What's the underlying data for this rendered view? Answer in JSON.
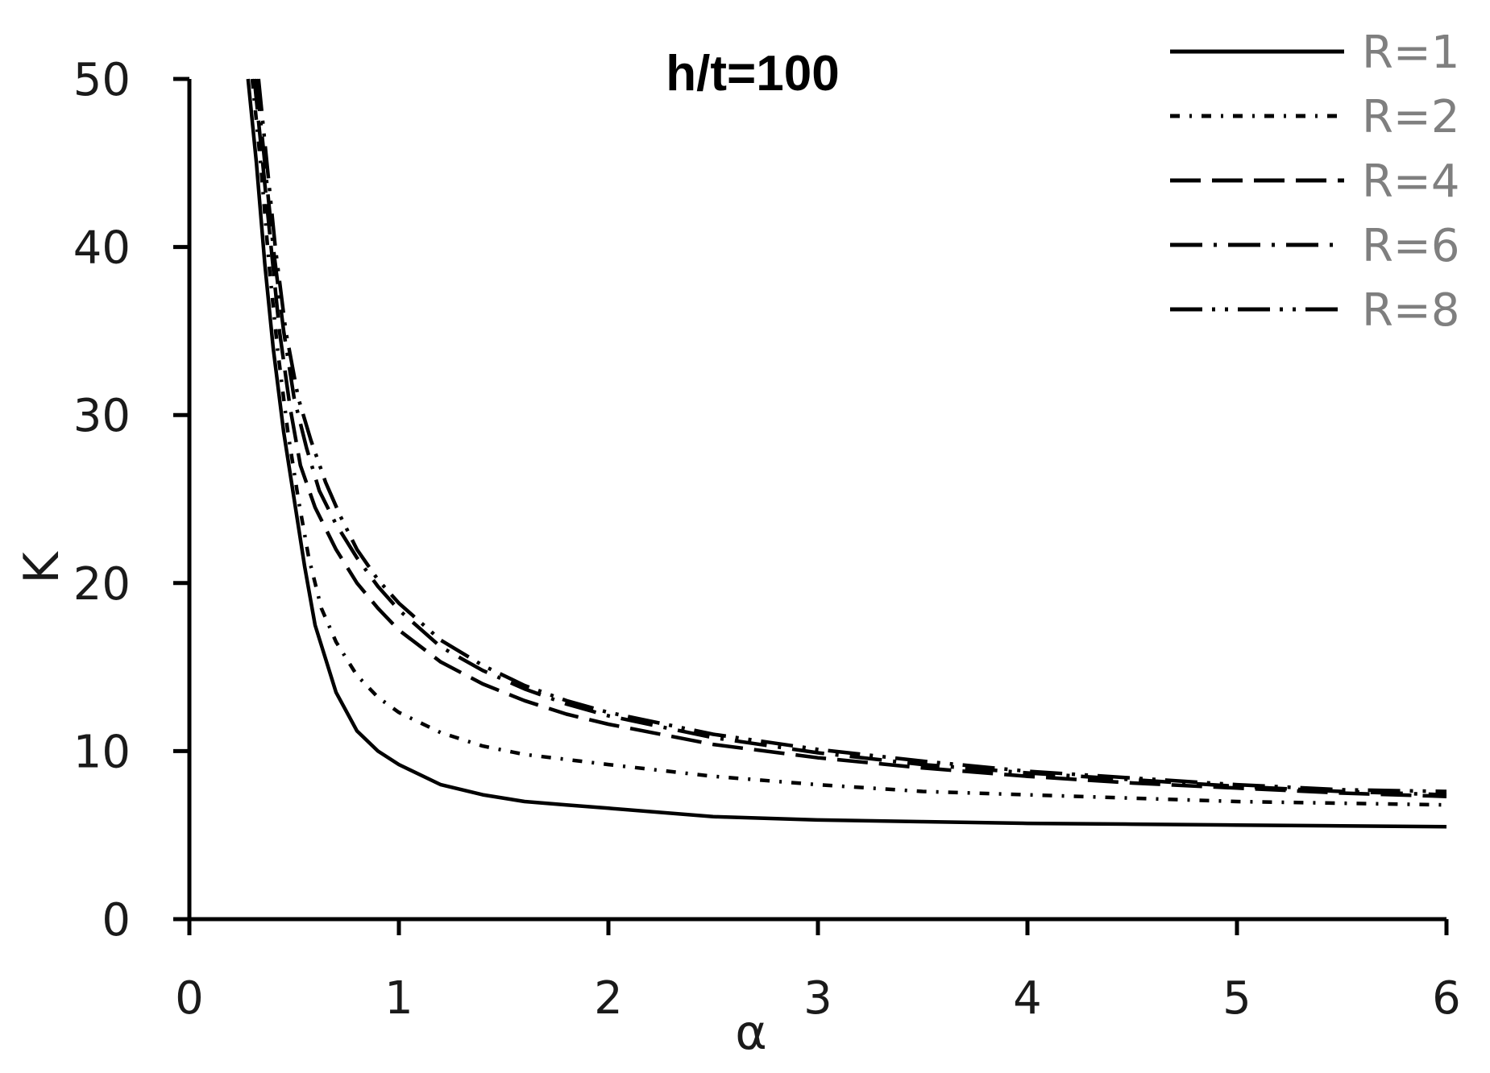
{
  "chart_data": {
    "type": "line",
    "title": "h/t=100",
    "xlabel": "α",
    "ylabel": "K",
    "xlim": [
      0,
      6
    ],
    "ylim": [
      0,
      50
    ],
    "x_ticks": [
      0,
      1,
      2,
      3,
      4,
      5,
      6
    ],
    "y_ticks": [
      0,
      10,
      20,
      30,
      40,
      50
    ],
    "grid": false,
    "legend_position": "top-right",
    "colors": {
      "line": "#000000",
      "legend_text": "#7f7f7f",
      "axis": "#000000"
    },
    "series": [
      {
        "name": "R=1",
        "style": "solid",
        "points": [
          [
            0.28,
            50
          ],
          [
            0.32,
            45
          ],
          [
            0.36,
            39
          ],
          [
            0.4,
            34
          ],
          [
            0.45,
            29
          ],
          [
            0.5,
            25
          ],
          [
            0.55,
            21
          ],
          [
            0.6,
            17.5
          ],
          [
            0.7,
            13.5
          ],
          [
            0.8,
            11.2
          ],
          [
            0.9,
            10
          ],
          [
            1.0,
            9.2
          ],
          [
            1.2,
            8.0
          ],
          [
            1.4,
            7.4
          ],
          [
            1.6,
            7.0
          ],
          [
            1.8,
            6.8
          ],
          [
            2.0,
            6.6
          ],
          [
            2.5,
            6.1
          ],
          [
            3.0,
            5.9
          ],
          [
            3.5,
            5.8
          ],
          [
            4.0,
            5.7
          ],
          [
            4.5,
            5.65
          ],
          [
            5.0,
            5.6
          ],
          [
            5.5,
            5.55
          ],
          [
            6.0,
            5.5
          ]
        ]
      },
      {
        "name": "R=2",
        "style": "dashdot",
        "points": [
          [
            0.3,
            50
          ],
          [
            0.34,
            45
          ],
          [
            0.38,
            39
          ],
          [
            0.42,
            34
          ],
          [
            0.47,
            29
          ],
          [
            0.52,
            25
          ],
          [
            0.57,
            21.5
          ],
          [
            0.63,
            18.5
          ],
          [
            0.7,
            16.5
          ],
          [
            0.8,
            14.5
          ],
          [
            0.9,
            13.2
          ],
          [
            1.0,
            12.3
          ],
          [
            1.2,
            11.1
          ],
          [
            1.4,
            10.3
          ],
          [
            1.6,
            9.8
          ],
          [
            1.8,
            9.5
          ],
          [
            2.0,
            9.2
          ],
          [
            2.5,
            8.5
          ],
          [
            3.0,
            8.0
          ],
          [
            3.5,
            7.6
          ],
          [
            4.0,
            7.4
          ],
          [
            4.5,
            7.2
          ],
          [
            5.0,
            7.0
          ],
          [
            5.5,
            6.9
          ],
          [
            6.0,
            6.8
          ]
        ]
      },
      {
        "name": "R=4",
        "style": "dashed",
        "points": [
          [
            0.31,
            50
          ],
          [
            0.35,
            45
          ],
          [
            0.39,
            40
          ],
          [
            0.43,
            35
          ],
          [
            0.48,
            30.5
          ],
          [
            0.53,
            27
          ],
          [
            0.6,
            24.5
          ],
          [
            0.7,
            22
          ],
          [
            0.8,
            20
          ],
          [
            0.9,
            18.5
          ],
          [
            1.0,
            17.2
          ],
          [
            1.2,
            15.3
          ],
          [
            1.4,
            14.0
          ],
          [
            1.6,
            13.0
          ],
          [
            1.8,
            12.2
          ],
          [
            2.0,
            11.6
          ],
          [
            2.5,
            10.4
          ],
          [
            3.0,
            9.6
          ],
          [
            3.5,
            9.0
          ],
          [
            4.0,
            8.5
          ],
          [
            4.5,
            8.1
          ],
          [
            5.0,
            7.8
          ],
          [
            5.5,
            7.5
          ],
          [
            6.0,
            7.3
          ]
        ]
      },
      {
        "name": "R=6",
        "style": "longdashdot",
        "points": [
          [
            0.32,
            50
          ],
          [
            0.36,
            45
          ],
          [
            0.4,
            40
          ],
          [
            0.45,
            35
          ],
          [
            0.5,
            31
          ],
          [
            0.56,
            28
          ],
          [
            0.62,
            25.5
          ],
          [
            0.7,
            23.5
          ],
          [
            0.8,
            21.5
          ],
          [
            0.9,
            19.8
          ],
          [
            1.0,
            18.4
          ],
          [
            1.2,
            16.2
          ],
          [
            1.4,
            14.8
          ],
          [
            1.6,
            13.7
          ],
          [
            1.8,
            12.8
          ],
          [
            2.0,
            12.1
          ],
          [
            2.5,
            10.8
          ],
          [
            3.0,
            9.9
          ],
          [
            3.5,
            9.2
          ],
          [
            4.0,
            8.7
          ],
          [
            4.5,
            8.3
          ],
          [
            5.0,
            7.9
          ],
          [
            5.5,
            7.6
          ],
          [
            6.0,
            7.4
          ]
        ]
      },
      {
        "name": "R=8",
        "style": "dashdotdot",
        "points": [
          [
            0.33,
            50
          ],
          [
            0.37,
            45
          ],
          [
            0.41,
            40
          ],
          [
            0.46,
            35
          ],
          [
            0.52,
            31
          ],
          [
            0.58,
            28.5
          ],
          [
            0.65,
            26
          ],
          [
            0.72,
            24
          ],
          [
            0.8,
            22
          ],
          [
            0.9,
            20.2
          ],
          [
            1.0,
            18.8
          ],
          [
            1.2,
            16.6
          ],
          [
            1.4,
            15.1
          ],
          [
            1.6,
            13.9
          ],
          [
            1.8,
            13.0
          ],
          [
            2.0,
            12.3
          ],
          [
            2.5,
            11.0
          ],
          [
            3.0,
            10.1
          ],
          [
            3.5,
            9.4
          ],
          [
            4.0,
            8.8
          ],
          [
            4.5,
            8.4
          ],
          [
            5.0,
            8.0
          ],
          [
            5.5,
            7.7
          ],
          [
            6.0,
            7.6
          ]
        ]
      }
    ]
  }
}
